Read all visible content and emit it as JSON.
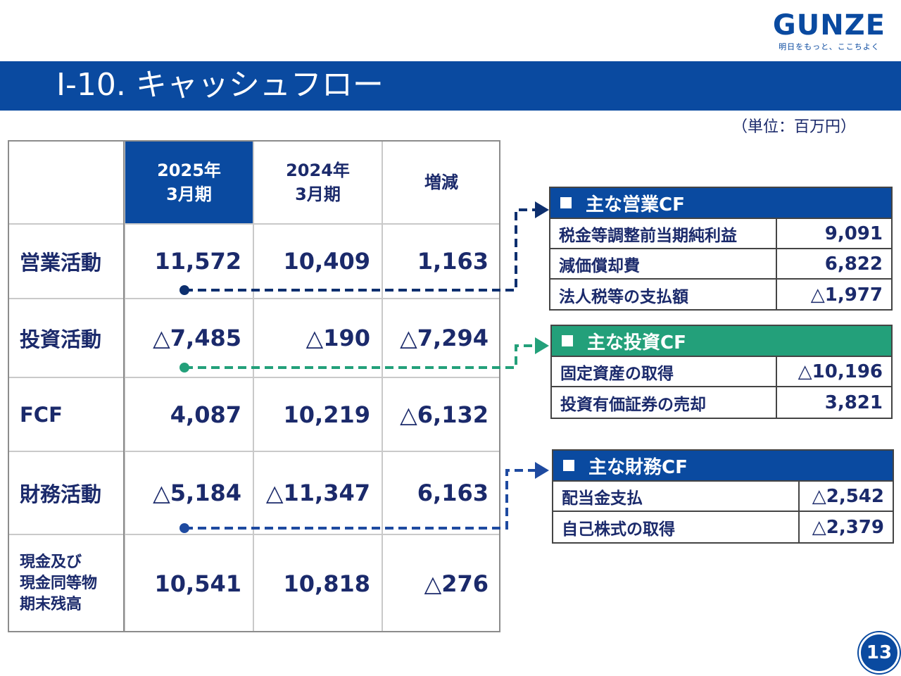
{
  "logo": {
    "word": "GUNZE",
    "tagline": "明日をもっと、ここちよく"
  },
  "title": "Ⅰ-10. キャッシュフロー",
  "unit_note": "（単位：百万円）",
  "table": {
    "headers": {
      "corner": "",
      "col1": "2025年\n3月期",
      "col2": "2024年\n3月期",
      "col3": "増減"
    },
    "rows": [
      {
        "label": "営業活動",
        "v2025": "11,572",
        "v2024": "10,409",
        "diff": "1,163"
      },
      {
        "label": "投資活動",
        "v2025": "△7,485",
        "v2024": "△190",
        "diff": "△7,294"
      },
      {
        "label": "FCF",
        "v2025": "4,087",
        "v2024": "10,219",
        "diff": "△6,132"
      },
      {
        "label": "財務活動",
        "v2025": "△5,184",
        "v2024": "△11,347",
        "diff": "6,163"
      },
      {
        "label": "現金及び\n現金同等物\n期末残高",
        "v2025": "10,541",
        "v2024": "10,818",
        "diff": "△276"
      }
    ]
  },
  "operating_box": {
    "title": "主な営業CF",
    "color": "#0a4aa0",
    "items": [
      {
        "label": "税金等調整前当期純利益",
        "value": "9,091"
      },
      {
        "label": "減価償却費",
        "value": "6,822"
      },
      {
        "label": "法人税等の支払額",
        "value": "△1,977"
      }
    ]
  },
  "investing_box": {
    "title": "主な投資CF",
    "color": "#23a07a",
    "items": [
      {
        "label": "固定資産の取得",
        "value": "△10,196"
      },
      {
        "label": "投資有価証券の売却",
        "value": "3,821"
      }
    ]
  },
  "financing_box": {
    "title": "主な財務CF",
    "color": "#0a4aa0",
    "items": [
      {
        "label": "配当金支払",
        "value": "△2,542"
      },
      {
        "label": "自己株式の取得",
        "value": "△2,379"
      }
    ]
  },
  "page_number": "13"
}
